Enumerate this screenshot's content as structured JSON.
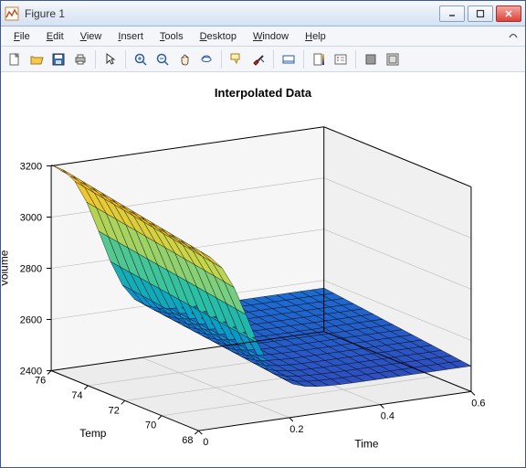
{
  "window": {
    "title": "Figure 1"
  },
  "menu": {
    "items": [
      "File",
      "Edit",
      "View",
      "Insert",
      "Tools",
      "Desktop",
      "Window",
      "Help"
    ]
  },
  "plot": {
    "title": "Interpolated Data",
    "xlabel": "Time",
    "ylabel": "Temp",
    "zlabel": "Volume",
    "xlim": [
      0,
      0.6
    ],
    "xticks": [
      0,
      0.2,
      0.4,
      0.6
    ],
    "ylim": [
      68,
      76
    ],
    "yticks": [
      68,
      70,
      72,
      74,
      76
    ],
    "zlim": [
      2400,
      3200
    ],
    "zticks": [
      2400,
      2600,
      2800,
      3000,
      3200
    ],
    "title_fontsize": 13,
    "label_fontsize": 12,
    "tick_fontsize": 11,
    "background_color": "#ffffff",
    "grid_color": "#b8b8b8",
    "axis_color": "#000000",
    "colormap": [
      "#352a87",
      "#2f4ebf",
      "#1379d8",
      "#0aa2c2",
      "#2bbfa4",
      "#7ecf7e",
      "#c6d549",
      "#f5c32b",
      "#fdbf2d"
    ],
    "surface_mesh_color": "#000000",
    "surface_mesh_width": 0.4,
    "type": "surface"
  }
}
